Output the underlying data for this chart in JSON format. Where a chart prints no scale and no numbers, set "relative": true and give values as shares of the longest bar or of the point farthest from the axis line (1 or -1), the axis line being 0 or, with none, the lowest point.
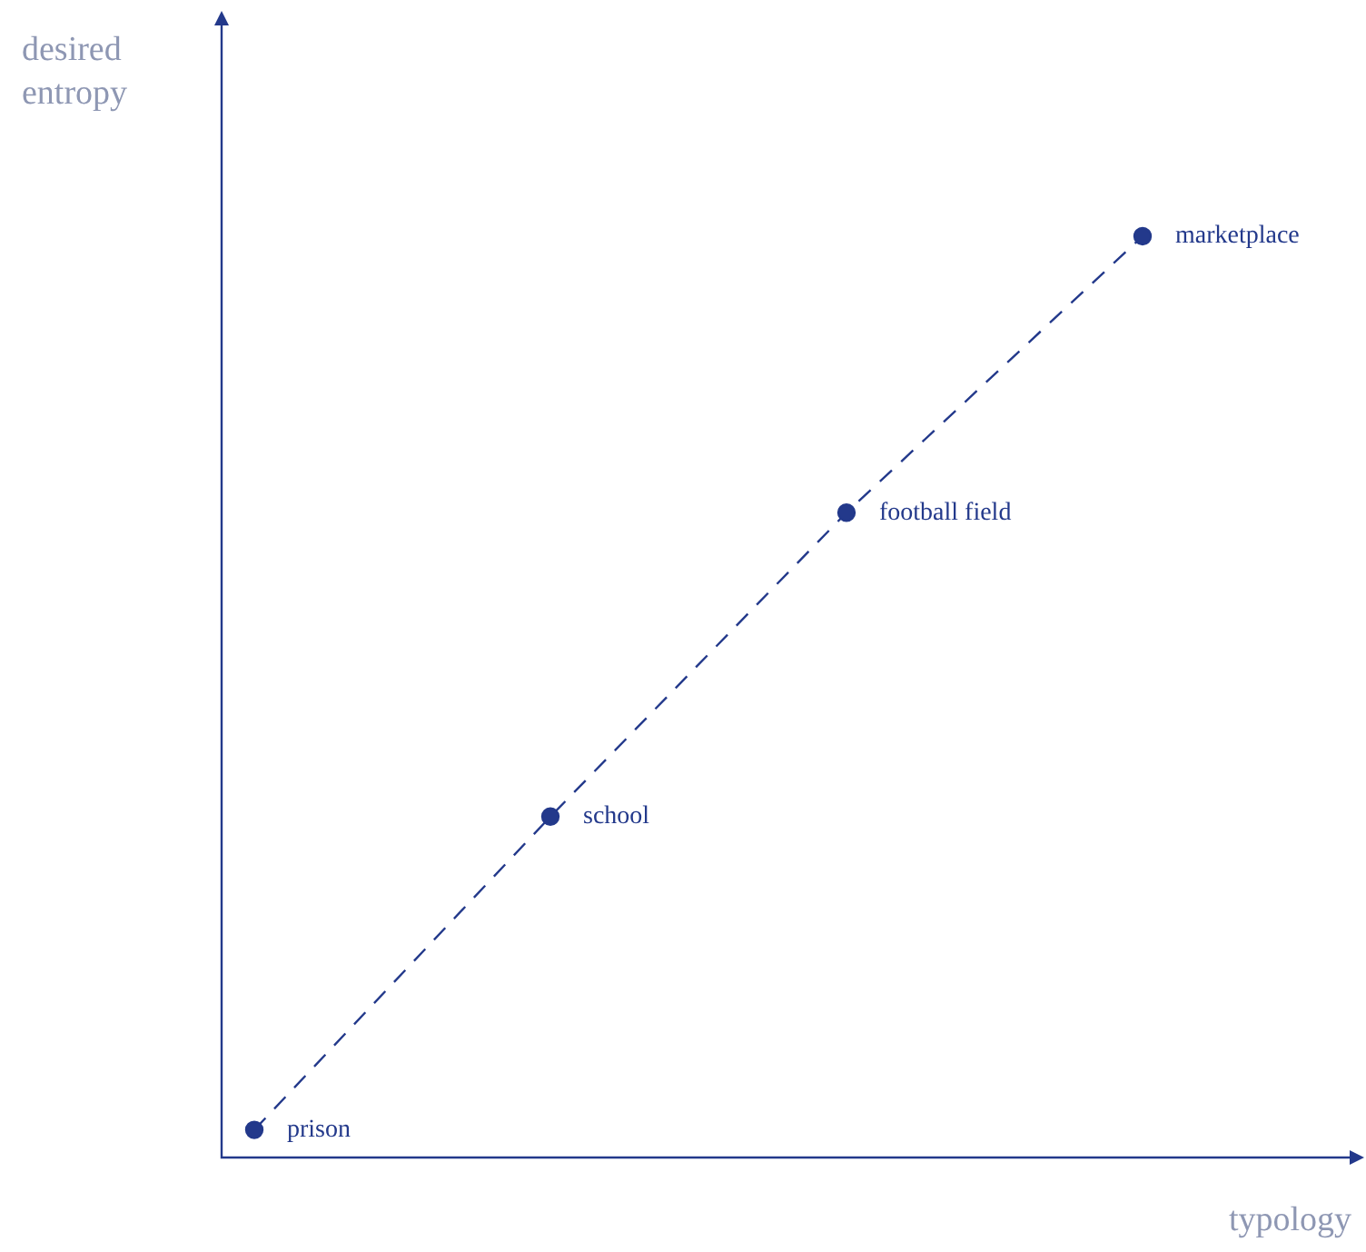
{
  "chart_data": {
    "type": "line",
    "relative": true,
    "xlabel": "typology",
    "ylabel": "desired entropy",
    "categories": [
      null,
      null,
      null,
      null
    ],
    "series": [
      {
        "type": "line",
        "color": "#23398b",
        "values": [
          0.03,
          0.37,
          0.7,
          1
        ],
        "line_style": "dashed",
        "marker": "circle"
      }
    ],
    "annotations": [
      "prison",
      "school",
      "football field",
      "marketplace"
    ],
    "grid": false,
    "legend": false
  }
}
